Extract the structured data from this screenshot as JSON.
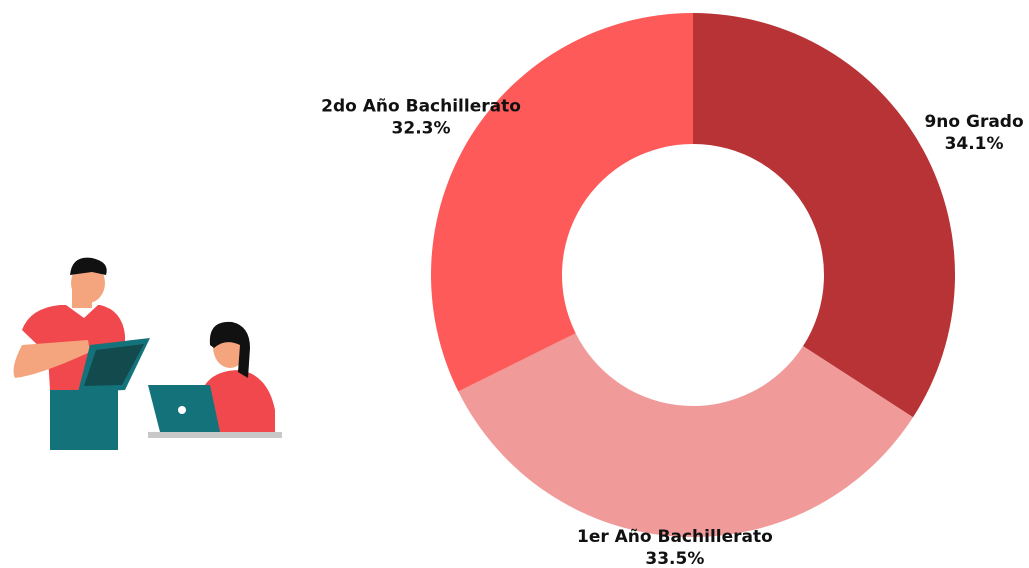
{
  "chart_data": {
    "type": "pie",
    "donut": true,
    "categories": [
      "9no Grado",
      "1er Año Bachillerato",
      "2do Año Bachillerato"
    ],
    "values": [
      34.1,
      33.5,
      32.3
    ],
    "value_labels": [
      "34.1%",
      "33.5%",
      "32.3%"
    ],
    "colors": [
      "#b83335",
      "#f09a9a",
      "#ff5a5a"
    ]
  }
}
